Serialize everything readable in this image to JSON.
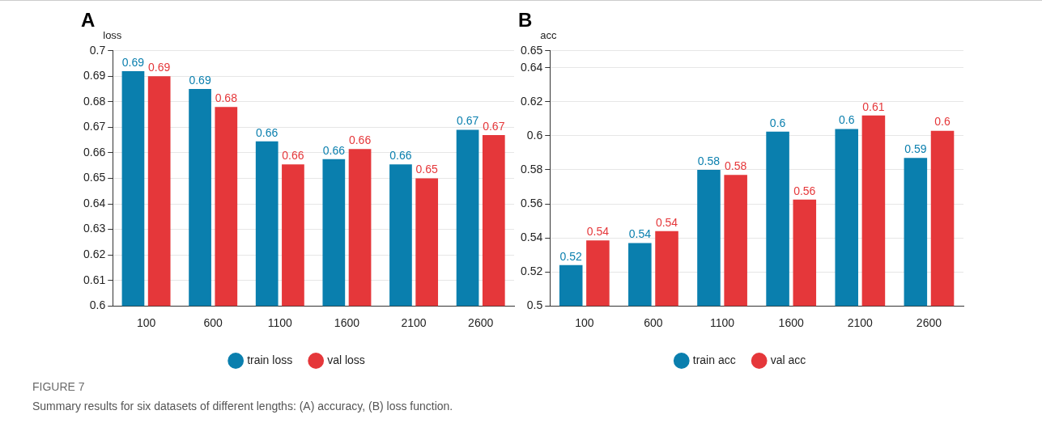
{
  "chart_data": [
    {
      "type": "bar",
      "title": "A",
      "ylabel": "loss",
      "categories": [
        "100",
        "600",
        "1100",
        "1600",
        "2100",
        "2600"
      ],
      "series": [
        {
          "name": "train loss",
          "color": "#0a7fae",
          "values": [
            0.692,
            0.685,
            0.6645,
            0.6575,
            0.6555,
            0.669
          ],
          "value_labels": [
            "0.69",
            "0.69",
            "0.66",
            "0.66",
            "0.66",
            "0.67"
          ]
        },
        {
          "name": "val loss",
          "color": "#e5373a",
          "values": [
            0.69,
            0.678,
            0.6555,
            0.6615,
            0.65,
            0.667
          ],
          "value_labels": [
            "0.69",
            "0.68",
            "0.66",
            "0.66",
            "0.65",
            "0.67"
          ]
        }
      ],
      "ylim": [
        0.6,
        0.7
      ],
      "yticks": [
        0.6,
        0.61,
        0.62,
        0.63,
        0.64,
        0.65,
        0.66,
        0.67,
        0.68,
        0.69,
        0.7
      ],
      "grid": "y",
      "legend": "bottom",
      "annotations": [
        "FIGURE 7",
        "Summary results for six datasets of different lengths: (A) accuracy, (B) loss function."
      ]
    },
    {
      "type": "bar",
      "title": "B",
      "ylabel": "acc",
      "categories": [
        "100",
        "600",
        "1100",
        "1600",
        "2100",
        "2600"
      ],
      "series": [
        {
          "name": "train acc",
          "color": "#0a7fae",
          "values": [
            0.524,
            0.537,
            0.58,
            0.6025,
            0.604,
            0.587
          ],
          "value_labels": [
            "0.52",
            "0.54",
            "0.58",
            "0.6",
            "0.6",
            "0.59"
          ]
        },
        {
          "name": "val acc",
          "color": "#e5373a",
          "values": [
            0.5385,
            0.544,
            0.577,
            0.5625,
            0.612,
            0.603
          ],
          "value_labels": [
            "0.54",
            "0.54",
            "0.58",
            "0.56",
            "0.61",
            "0.6"
          ]
        }
      ],
      "ylim": [
        0.5,
        0.65
      ],
      "yticks": [
        0.5,
        0.52,
        0.54,
        0.56,
        0.58,
        0.6,
        0.62,
        0.64,
        0.65
      ],
      "grid": "y",
      "legend": "bottom"
    }
  ]
}
